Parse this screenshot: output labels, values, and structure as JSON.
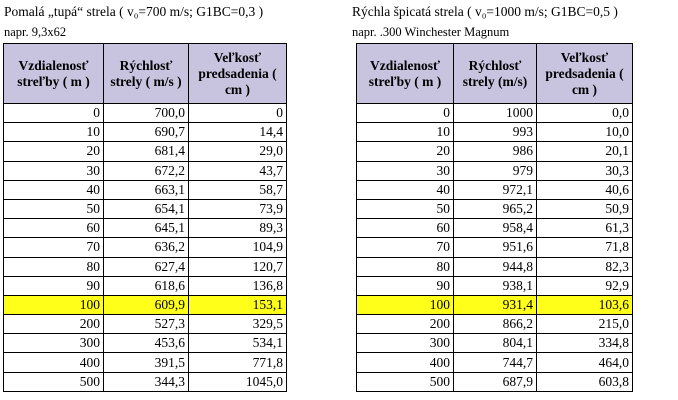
{
  "left": {
    "caption_line1": "Pomalá „tupá“ strela ( v₀=700 m/s; G1BC=0,3 )",
    "caption_line2": "napr. 9,3x62",
    "headers": [
      "Vzdialenosť streľby ( m )",
      "Rýchlosť strely ( m/s )",
      "Veľkosť predsadenia ( cm )"
    ],
    "rows": [
      [
        "0",
        "700,0",
        "0"
      ],
      [
        "10",
        "690,7",
        "14,4"
      ],
      [
        "20",
        "681,4",
        "29,0"
      ],
      [
        "30",
        "672,2",
        "43,7"
      ],
      [
        "40",
        "663,1",
        "58,7"
      ],
      [
        "50",
        "654,1",
        "73,9"
      ],
      [
        "60",
        "645,1",
        "89,3"
      ],
      [
        "70",
        "636,2",
        "104,9"
      ],
      [
        "80",
        "627,4",
        "120,7"
      ],
      [
        "90",
        "618,6",
        "136,8"
      ],
      [
        "100",
        "609,9",
        "153,1"
      ],
      [
        "200",
        "527,3",
        "329,5"
      ],
      [
        "300",
        "453,6",
        "534,1"
      ],
      [
        "400",
        "391,5",
        "771,8"
      ],
      [
        "500",
        "344,3",
        "1045,0"
      ]
    ],
    "highlight_row": 10
  },
  "right": {
    "caption_line1": "Rýchla špicatá strela ( v₀=1000 m/s; G1BC=0,5 )",
    "caption_line2": "napr. .300 Winchester Magnum",
    "headers": [
      "Vzdialenosť streľby ( m )",
      "Rýchlosť strely (m/s)",
      "Veľkosť predsadenia ( cm )"
    ],
    "rows": [
      [
        "0",
        "1000",
        "0,0"
      ],
      [
        "10",
        "993",
        "10,0"
      ],
      [
        "20",
        "986",
        "20,1"
      ],
      [
        "30",
        "979",
        "30,3"
      ],
      [
        "40",
        "972,1",
        "40,6"
      ],
      [
        "50",
        "965,2",
        "50,9"
      ],
      [
        "60",
        "958,4",
        "61,3"
      ],
      [
        "70",
        "951,6",
        "71,8"
      ],
      [
        "80",
        "944,8",
        "82,3"
      ],
      [
        "90",
        "938,1",
        "92,9"
      ],
      [
        "100",
        "931,4",
        "103,6"
      ],
      [
        "200",
        "866,2",
        "215,0"
      ],
      [
        "300",
        "804,1",
        "334,8"
      ],
      [
        "400",
        "744,7",
        "464,0"
      ],
      [
        "500",
        "687,9",
        "603,8"
      ]
    ],
    "highlight_row": 10
  },
  "colors": {
    "header_bg": "#c8c4e0",
    "highlight_bg": "#ffff1a"
  }
}
